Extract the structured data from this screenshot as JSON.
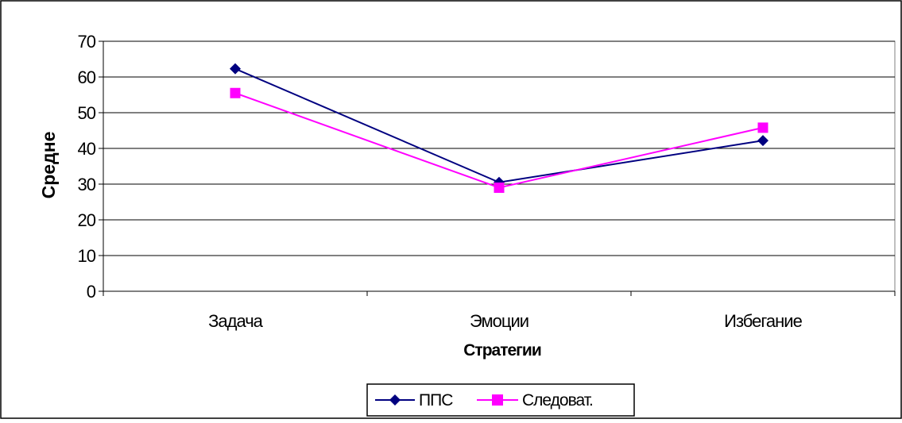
{
  "chart_data": {
    "type": "line",
    "title": "",
    "xlabel": "Стратегии",
    "ylabel": "Средне",
    "categories": [
      "Задача",
      "Эмоции",
      "Избегание"
    ],
    "ylim": [
      0,
      70
    ],
    "yticks": [
      0,
      10,
      20,
      30,
      40,
      50,
      60,
      70
    ],
    "grid": true,
    "legend_position": "bottom",
    "series": [
      {
        "name": "ППС",
        "values": [
          62.3,
          30.5,
          42.2
        ],
        "color": "#000080",
        "marker": "diamond"
      },
      {
        "name": "Следоват.",
        "values": [
          55.5,
          29.0,
          45.8
        ],
        "color": "#ff00ff",
        "marker": "square"
      }
    ]
  }
}
